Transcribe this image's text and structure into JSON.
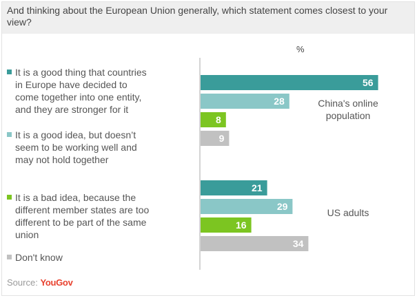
{
  "title": "And thinking about the European Union generally, which statement comes closest to your view?",
  "unit": "%",
  "source_label": "Source:",
  "brand": "YouGov",
  "colors": {
    "good_stronger": "#3a9c9a",
    "good_idea_not_working": "#8ac7c7",
    "bad_idea": "#7cc521",
    "dont_know": "#c1c1c1",
    "axis": "#aaaaaa"
  },
  "legend": [
    {
      "label": "It is a good thing that countries in Europe have decided to come together into one entity, and they are stronger for it",
      "color": "#3a9c9a"
    },
    {
      "label": "It is a good idea, but doesn’t seem to be working well and may not hold together",
      "color": "#8ac7c7"
    },
    {
      "label": "It is a bad idea, because the different member states are too different to be part of the same union",
      "color": "#7cc521"
    },
    {
      "label": "Don't know",
      "color": "#c1c1c1"
    }
  ],
  "chart_data": {
    "type": "bar",
    "orientation": "horizontal",
    "title": "And thinking about the European Union generally, which statement comes closest to your view?",
    "unit": "%",
    "xlim": [
      0,
      100
    ],
    "grid": false,
    "groups": [
      {
        "name": "China's online population",
        "values": [
          56,
          28,
          8,
          9
        ]
      },
      {
        "name": "US adults",
        "values": [
          21,
          29,
          16,
          34
        ]
      }
    ],
    "series": [
      {
        "name": "It is a good thing that countries in Europe have decided to come together into one entity, and they are stronger for it",
        "color": "#3a9c9a"
      },
      {
        "name": "It is a good idea, but doesn’t seem to be working well and may not hold together",
        "color": "#8ac7c7"
      },
      {
        "name": "It is a bad idea, because the different member states are too different to be part of the same union",
        "color": "#7cc521"
      },
      {
        "name": "Don't know",
        "color": "#c1c1c1"
      }
    ]
  }
}
